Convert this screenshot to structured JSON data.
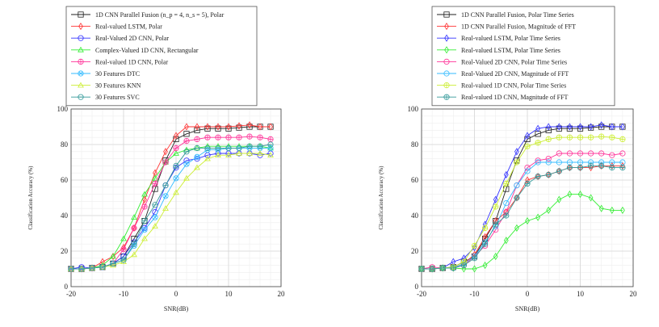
{
  "chart_data": [
    {
      "type": "line",
      "title": "",
      "xlabel": "SNR(dB)",
      "ylabel": "Classification Accuracy (%)",
      "xlim": [
        -20,
        20
      ],
      "ylim": [
        0,
        100
      ],
      "xticks": [
        -20,
        -10,
        0,
        10,
        20
      ],
      "yticks": [
        0,
        20,
        40,
        60,
        80,
        100
      ],
      "grid": true,
      "legend_position": "top",
      "x": [
        -20,
        -18,
        -16,
        -14,
        -12,
        -10,
        -8,
        -6,
        -4,
        -2,
        0,
        2,
        4,
        6,
        8,
        10,
        12,
        14,
        16,
        18
      ],
      "series": [
        {
          "name": "1D CNN Parallel Fusion (n_p = 4, n_s = 5), Polar",
          "color": "#222222",
          "marker": "square",
          "values": [
            10,
            10,
            10.5,
            11,
            13,
            17,
            27,
            37,
            55,
            71,
            83,
            86,
            88,
            89,
            89,
            89,
            89.5,
            90,
            90,
            90
          ]
        },
        {
          "name": "Real-valued LSTM, Polar",
          "color": "#ff3333",
          "marker": "diamond",
          "values": [
            10,
            10,
            10.5,
            14,
            17,
            22,
            33,
            49,
            64,
            76,
            85,
            90,
            90,
            90,
            90,
            90,
            90.5,
            91,
            90,
            90
          ]
        },
        {
          "name": "Real-Valued 2D CNN, Polar",
          "color": "#3333ff",
          "marker": "circle",
          "values": [
            10,
            11,
            10.5,
            11,
            13,
            17,
            25,
            33,
            42,
            57,
            67,
            71,
            72,
            74,
            75,
            75,
            75,
            75,
            74,
            75
          ]
        },
        {
          "name": "Complex-Valued 1D CNN, Rectangular",
          "color": "#33ee33",
          "marker": "triangle",
          "values": [
            10,
            10,
            10.5,
            12,
            17,
            27,
            39,
            52,
            61,
            70,
            75,
            77,
            78,
            79,
            79,
            79,
            79,
            79,
            79,
            78
          ]
        },
        {
          "name": "Real-valued 1D CNN, Polar",
          "color": "#ff3399",
          "marker": "circle-plus",
          "values": [
            10,
            10,
            10.5,
            11,
            13,
            21,
            33,
            45,
            58,
            70,
            78,
            82,
            83,
            84,
            84,
            84,
            84,
            84.5,
            84,
            83
          ]
        },
        {
          "name": "30 Features DTC",
          "color": "#33bbff",
          "marker": "circle-x",
          "values": [
            10,
            10,
            10.5,
            11,
            13,
            15,
            23,
            32,
            39,
            51,
            61,
            69,
            73,
            77,
            77,
            78,
            78,
            78,
            78,
            78
          ]
        },
        {
          "name": "30 Features KNN",
          "color": "#ccee33",
          "marker": "triangle",
          "values": [
            10,
            10,
            10.5,
            11,
            12,
            14,
            18,
            27,
            34,
            44,
            53,
            61,
            67,
            72,
            74,
            74,
            75,
            75,
            75,
            74
          ]
        },
        {
          "name": "30 Features SVC",
          "color": "#339999",
          "marker": "circle-minus",
          "values": [
            10,
            10,
            10.5,
            11,
            13,
            15,
            24,
            37,
            46,
            57,
            68,
            76,
            78,
            78,
            78,
            78,
            78,
            79,
            79,
            80
          ]
        }
      ]
    },
    {
      "type": "line",
      "title": "",
      "xlabel": "SNR(dB)",
      "ylabel": "Classification Accuracy (%)",
      "xlim": [
        -20,
        20
      ],
      "ylim": [
        0,
        100
      ],
      "xticks": [
        -20,
        -10,
        0,
        10,
        20
      ],
      "yticks": [
        0,
        20,
        40,
        60,
        80,
        100
      ],
      "grid": true,
      "legend_position": "top",
      "x": [
        -20,
        -18,
        -16,
        -14,
        -12,
        -10,
        -8,
        -6,
        -4,
        -2,
        0,
        2,
        4,
        6,
        8,
        10,
        12,
        14,
        16,
        18
      ],
      "series": [
        {
          "name": "1D CNN Parallel Fusion, Polar Time Series",
          "color": "#222222",
          "marker": "square",
          "values": [
            10,
            10,
            10.5,
            11,
            14,
            17,
            27,
            37,
            55,
            71,
            83,
            86,
            88,
            89,
            89,
            89,
            89.5,
            90,
            90,
            90
          ]
        },
        {
          "name": "1D CNN Parallel Fusion, Magnitude of FFT",
          "color": "#ff3333",
          "marker": "diamond",
          "values": [
            10,
            10,
            10.5,
            10.5,
            13,
            18,
            28,
            37,
            42,
            50,
            60,
            62,
            63,
            65,
            67,
            67,
            67,
            68,
            68,
            68
          ]
        },
        {
          "name": "Real-valued LSTM, Polar Time Series",
          "color": "#3333ff",
          "marker": "diamond",
          "values": [
            10,
            10,
            10.5,
            14,
            16,
            22,
            35,
            49,
            63,
            76,
            85,
            89,
            90,
            90,
            90,
            90,
            90,
            91,
            90,
            90
          ]
        },
        {
          "name": "Real-valued LSTM, Polar Time Series",
          "color": "#33ee33",
          "marker": "diamond",
          "values": [
            10,
            10,
            10.5,
            10.5,
            10,
            10,
            12,
            17,
            26,
            33,
            37,
            39,
            43,
            49,
            52,
            52,
            50,
            44,
            43,
            43
          ]
        },
        {
          "name": "Real-Valued 2D CNN, Polar Time Series",
          "color": "#ff3399",
          "marker": "circle",
          "values": [
            10,
            11,
            10.5,
            10.5,
            12,
            17,
            23,
            32,
            42,
            57,
            67,
            71,
            72,
            75,
            75,
            75,
            75,
            75,
            74,
            75
          ]
        },
        {
          "name": "Real-Valued 2D CNN, Magnitude of FFT",
          "color": "#33bbff",
          "marker": "circle",
          "values": [
            10,
            10,
            10.5,
            10.5,
            13,
            17,
            25,
            34,
            47,
            57,
            65,
            70,
            70,
            70,
            70,
            70,
            70,
            70,
            70,
            70
          ]
        },
        {
          "name": "Real-valued 1D CNN, Polar Time Series",
          "color": "#ccee33",
          "marker": "circle-plus",
          "values": [
            10,
            10,
            10.5,
            11,
            14,
            23,
            33,
            45,
            58,
            70,
            79,
            81,
            83,
            84,
            84,
            84,
            84,
            84.5,
            84,
            83
          ]
        },
        {
          "name": "Real-valued 1D CNN, Magnitude of FFT",
          "color": "#339999",
          "marker": "circle-plus",
          "values": [
            10,
            10,
            10.5,
            10.5,
            12,
            16,
            24,
            35,
            40,
            50,
            58,
            62,
            63,
            65,
            67,
            67,
            68,
            68,
            67,
            67
          ]
        }
      ]
    }
  ]
}
